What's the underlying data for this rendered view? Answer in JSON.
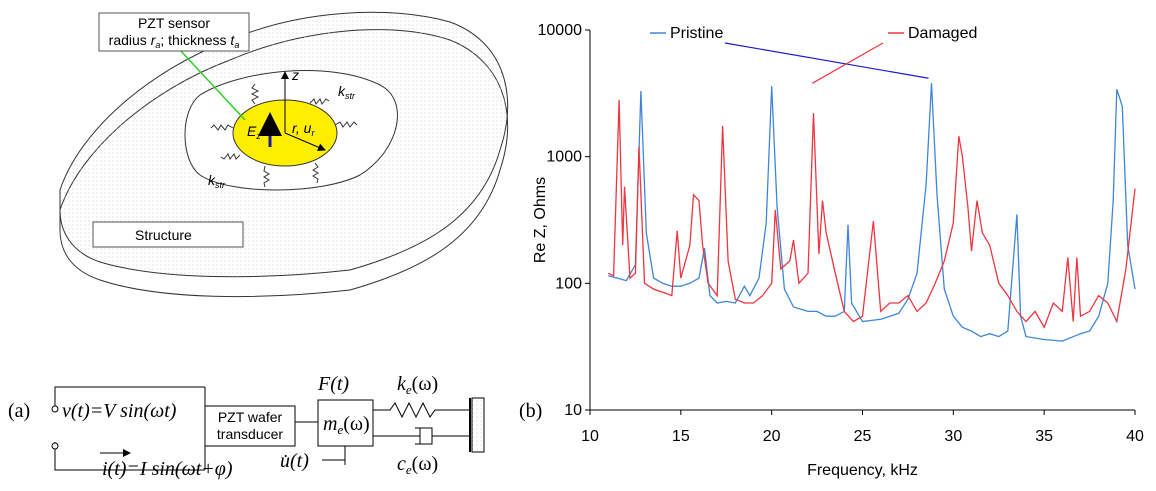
{
  "diagram": {
    "sensor_title": "PZT sensor",
    "sensor_dims": [
      "radius ",
      "r",
      "a",
      "; thickness ",
      "t",
      "a"
    ],
    "z_axis": "z",
    "field": [
      "E",
      "z"
    ],
    "radial": [
      "r, u",
      "r"
    ],
    "spring_top": [
      "k",
      "str"
    ],
    "spring_bottom": [
      "k",
      "str"
    ],
    "structure": "Structure",
    "voltage": "v(t)=V sin(ωt)",
    "current": "i(t)=I sin(ωt+φ)",
    "transducer": [
      "PZT wafer",
      "transducer"
    ],
    "force": "F(t)",
    "mass": [
      "m",
      "e",
      "(ω)"
    ],
    "stiffness": [
      "k",
      "e",
      "(ω)"
    ],
    "damping": [
      "c",
      "e",
      "(ω)"
    ],
    "velocity": "u̇(t)",
    "panel": "(a)"
  },
  "chart_data": {
    "type": "line",
    "panel": "(b)",
    "xlabel": "Frequency, kHz",
    "ylabel": "Re Z, Ohms",
    "xlim": [
      10,
      40
    ],
    "xticks": [
      10,
      15,
      20,
      25,
      30,
      35,
      40
    ],
    "ylim": [
      10,
      10000
    ],
    "yticks": [
      10,
      100,
      1000,
      10000
    ],
    "log_y": true,
    "grid": false,
    "series": [
      {
        "name": "Pristine",
        "color": "#3f86d6",
        "x": [
          11.0,
          11.5,
          12.0,
          12.5,
          12.8,
          13.1,
          13.5,
          14.0,
          14.5,
          15.0,
          15.5,
          16.0,
          16.3,
          16.6,
          17.0,
          17.5,
          18.0,
          18.5,
          18.8,
          19.3,
          19.7,
          20.0,
          20.3,
          20.7,
          21.2,
          22.0,
          22.5,
          23.0,
          23.5,
          24.0,
          24.2,
          24.4,
          25.0,
          26.0,
          27.0,
          27.5,
          28.0,
          28.5,
          28.8,
          29.1,
          29.5,
          30.0,
          30.5,
          31.0,
          31.5,
          32.0,
          32.5,
          33.0,
          33.5,
          33.7,
          34.0,
          35.0,
          36.0,
          37.0,
          37.5,
          38.0,
          38.5,
          38.8,
          39.0,
          39.3,
          39.6,
          40.0
        ],
        "values": [
          115,
          110,
          105,
          140,
          3300,
          250,
          110,
          100,
          95,
          95,
          100,
          110,
          190,
          80,
          70,
          72,
          70,
          95,
          80,
          110,
          300,
          3600,
          400,
          90,
          65,
          60,
          60,
          55,
          55,
          60,
          290,
          70,
          50,
          52,
          58,
          75,
          120,
          600,
          3800,
          500,
          90,
          55,
          45,
          42,
          38,
          40,
          38,
          42,
          350,
          55,
          38,
          36,
          35,
          40,
          42,
          55,
          100,
          450,
          3400,
          2500,
          200,
          90
        ]
      },
      {
        "name": "Damaged",
        "color": "#ee3540",
        "x": [
          11.0,
          11.3,
          11.6,
          11.8,
          11.9,
          12.2,
          12.5,
          12.7,
          13.0,
          13.5,
          14.0,
          14.5,
          14.8,
          15.0,
          15.5,
          15.7,
          16.0,
          16.2,
          16.5,
          17.0,
          17.3,
          17.6,
          18.0,
          18.5,
          19.0,
          19.5,
          20.0,
          20.2,
          20.5,
          21.0,
          21.2,
          21.5,
          22.0,
          22.3,
          22.6,
          22.8,
          23.0,
          23.5,
          24.0,
          24.5,
          25.0,
          25.6,
          26.0,
          26.5,
          27.0,
          27.5,
          28.0,
          28.5,
          29.0,
          29.5,
          30.0,
          30.3,
          30.5,
          30.8,
          31.0,
          31.3,
          31.6,
          32.0,
          32.5,
          33.0,
          33.5,
          34.0,
          34.5,
          35.0,
          35.5,
          36.0,
          36.3,
          36.6,
          36.8,
          37.0,
          37.5,
          38.0,
          38.5,
          39.0,
          39.5,
          40.0
        ],
        "values": [
          120,
          115,
          2800,
          200,
          580,
          110,
          120,
          1200,
          100,
          90,
          85,
          80,
          260,
          110,
          200,
          500,
          450,
          200,
          100,
          80,
          1750,
          150,
          75,
          70,
          70,
          80,
          100,
          380,
          130,
          150,
          220,
          100,
          120,
          2200,
          170,
          450,
          250,
          120,
          60,
          50,
          55,
          310,
          60,
          70,
          70,
          80,
          60,
          70,
          100,
          150,
          300,
          1450,
          1000,
          400,
          180,
          450,
          250,
          200,
          100,
          80,
          60,
          50,
          60,
          45,
          70,
          60,
          160,
          50,
          160,
          55,
          60,
          80,
          70,
          50,
          130,
          560
        ]
      }
    ]
  }
}
